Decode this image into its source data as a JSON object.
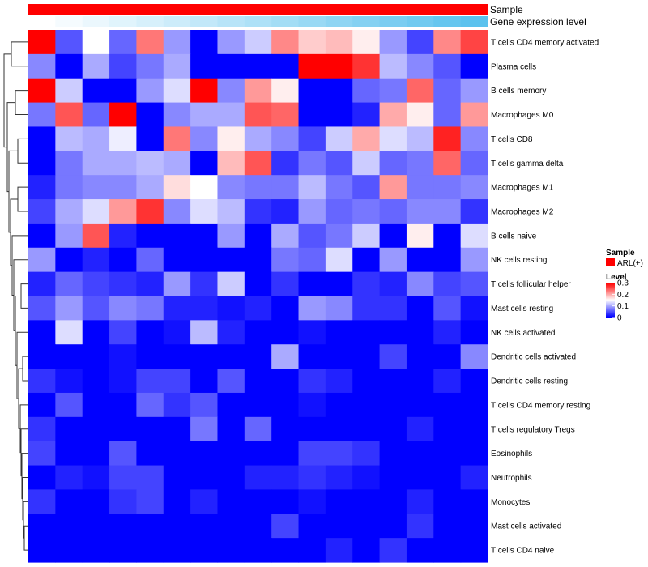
{
  "chart_data": {
    "type": "heatmap",
    "title": "",
    "annotation_tracks": [
      {
        "name": "Sample",
        "color": "#ff0000"
      },
      {
        "name": "Gene expression level",
        "gradient": [
          "#ffffff",
          "#5bc2ee"
        ]
      }
    ],
    "row_labels": [
      "T cells CD4 memory activated",
      "Plasma cells",
      "B cells memory",
      "Macrophages M0",
      "T cells CD8",
      "T cells gamma delta",
      "Macrophages M1",
      "Macrophages M2",
      "B cells naive",
      "NK cells resting",
      "T cells follicular helper",
      "Mast cells resting",
      "NK cells activated",
      "Dendritic cells activated",
      "Dendritic cells resting",
      "T cells CD4 memory resting",
      "T cells regulatory  Tregs",
      "Eosinophils",
      "Neutrophils",
      "Monocytes",
      "Mast cells activated",
      "T cells CD4 naive"
    ],
    "n_columns": 17,
    "values": [
      [
        0.3,
        0.05,
        0.15,
        0.06,
        0.23,
        0.09,
        0.0,
        0.09,
        0.12,
        0.22,
        0.18,
        0.19,
        0.16,
        0.09,
        0.04,
        0.22,
        0.26
      ],
      [
        0.08,
        0.0,
        0.1,
        0.04,
        0.07,
        0.1,
        0.0,
        0.0,
        0.0,
        0.0,
        0.3,
        0.3,
        0.27,
        0.11,
        0.08,
        0.05,
        0.0
      ],
      [
        0.3,
        0.12,
        0.0,
        0.0,
        0.09,
        0.13,
        0.3,
        0.08,
        0.21,
        0.16,
        0.0,
        0.0,
        0.06,
        0.07,
        0.24,
        0.06,
        0.09
      ],
      [
        0.07,
        0.25,
        0.06,
        0.3,
        0.0,
        0.08,
        0.1,
        0.1,
        0.25,
        0.24,
        0.0,
        0.0,
        0.02,
        0.2,
        0.16,
        0.06,
        0.21
      ],
      [
        0.0,
        0.11,
        0.1,
        0.14,
        0.0,
        0.23,
        0.08,
        0.16,
        0.1,
        0.08,
        0.04,
        0.12,
        0.2,
        0.13,
        0.11,
        0.28,
        0.08
      ],
      [
        0.0,
        0.07,
        0.1,
        0.1,
        0.11,
        0.1,
        0.0,
        0.19,
        0.25,
        0.03,
        0.07,
        0.05,
        0.12,
        0.06,
        0.07,
        0.24,
        0.06
      ],
      [
        0.02,
        0.07,
        0.08,
        0.08,
        0.1,
        0.17,
        0.15,
        0.08,
        0.07,
        0.07,
        0.11,
        0.07,
        0.05,
        0.21,
        0.07,
        0.07,
        0.08
      ],
      [
        0.04,
        0.1,
        0.13,
        0.21,
        0.27,
        0.08,
        0.13,
        0.11,
        0.03,
        0.02,
        0.09,
        0.06,
        0.07,
        0.06,
        0.08,
        0.08,
        0.03
      ],
      [
        0.0,
        0.09,
        0.25,
        0.02,
        0.0,
        0.0,
        0.0,
        0.09,
        0.0,
        0.1,
        0.05,
        0.07,
        0.12,
        0.0,
        0.16,
        0.0,
        0.13
      ],
      [
        0.09,
        0.0,
        0.02,
        0.0,
        0.06,
        0.0,
        0.0,
        0.0,
        0.0,
        0.07,
        0.06,
        0.13,
        0.0,
        0.09,
        0.0,
        0.0,
        0.09
      ],
      [
        0.02,
        0.06,
        0.04,
        0.03,
        0.02,
        0.09,
        0.03,
        0.12,
        0.0,
        0.03,
        0.0,
        0.0,
        0.03,
        0.02,
        0.08,
        0.04,
        0.05
      ],
      [
        0.05,
        0.09,
        0.05,
        0.08,
        0.07,
        0.02,
        0.02,
        0.01,
        0.02,
        0.0,
        0.09,
        0.08,
        0.03,
        0.03,
        0.0,
        0.05,
        0.01
      ],
      [
        0.0,
        0.13,
        0.0,
        0.04,
        0.0,
        0.01,
        0.11,
        0.02,
        0.0,
        0.0,
        0.01,
        0.0,
        0.0,
        0.0,
        0.0,
        0.02,
        0.0
      ],
      [
        0.0,
        0.0,
        0.0,
        0.01,
        0.0,
        0.0,
        0.0,
        0.0,
        0.0,
        0.1,
        0.0,
        0.0,
        0.0,
        0.04,
        0.0,
        0.0,
        0.08
      ],
      [
        0.03,
        0.01,
        0.0,
        0.01,
        0.04,
        0.04,
        0.0,
        0.05,
        0.0,
        0.0,
        0.03,
        0.02,
        0.0,
        0.0,
        0.0,
        0.02,
        0.0
      ],
      [
        0.0,
        0.05,
        0.0,
        0.0,
        0.06,
        0.03,
        0.05,
        0.0,
        0.0,
        0.0,
        0.01,
        0.0,
        0.0,
        0.0,
        0.0,
        0.0,
        0.0
      ],
      [
        0.03,
        0.0,
        0.0,
        0.0,
        0.0,
        0.0,
        0.07,
        0.0,
        0.06,
        0.0,
        0.0,
        0.0,
        0.0,
        0.0,
        0.02,
        0.0,
        0.0
      ],
      [
        0.04,
        0.0,
        0.0,
        0.05,
        0.0,
        0.0,
        0.0,
        0.0,
        0.0,
        0.0,
        0.04,
        0.04,
        0.03,
        0.0,
        0.0,
        0.0,
        0.0
      ],
      [
        0.0,
        0.02,
        0.01,
        0.04,
        0.04,
        0.0,
        0.0,
        0.0,
        0.02,
        0.02,
        0.03,
        0.02,
        0.01,
        0.0,
        0.0,
        0.0,
        0.02
      ],
      [
        0.03,
        0.0,
        0.0,
        0.03,
        0.04,
        0.0,
        0.02,
        0.0,
        0.0,
        0.0,
        0.01,
        0.0,
        0.0,
        0.0,
        0.02,
        0.0,
        0.0
      ],
      [
        0.0,
        0.0,
        0.0,
        0.0,
        0.0,
        0.0,
        0.0,
        0.0,
        0.0,
        0.04,
        0.0,
        0.0,
        0.0,
        0.0,
        0.03,
        0.0,
        0.0
      ],
      [
        0.0,
        0.0,
        0.0,
        0.0,
        0.0,
        0.0,
        0.0,
        0.0,
        0.0,
        0.0,
        0.0,
        0.02,
        0.0,
        0.03,
        0.0,
        0.0,
        0.0
      ]
    ],
    "color_scale": {
      "min": 0,
      "max": 0.3,
      "stops": [
        {
          "value": 0,
          "color": "#0000ff"
        },
        {
          "value": 0.15,
          "color": "#ffffff"
        },
        {
          "value": 0.3,
          "color": "#ff0000"
        }
      ]
    },
    "legend": {
      "sample_title": "Sample",
      "sample_entry": "ARL(+)",
      "sample_color": "#ff0000",
      "level_title": "Level",
      "level_ticks": [
        "0.3",
        "0.2",
        "0.1",
        "0"
      ],
      "level_tick_values": [
        0.3,
        0.2,
        0.1,
        0
      ]
    },
    "dendrogram": "row clustering tree (left side)"
  }
}
